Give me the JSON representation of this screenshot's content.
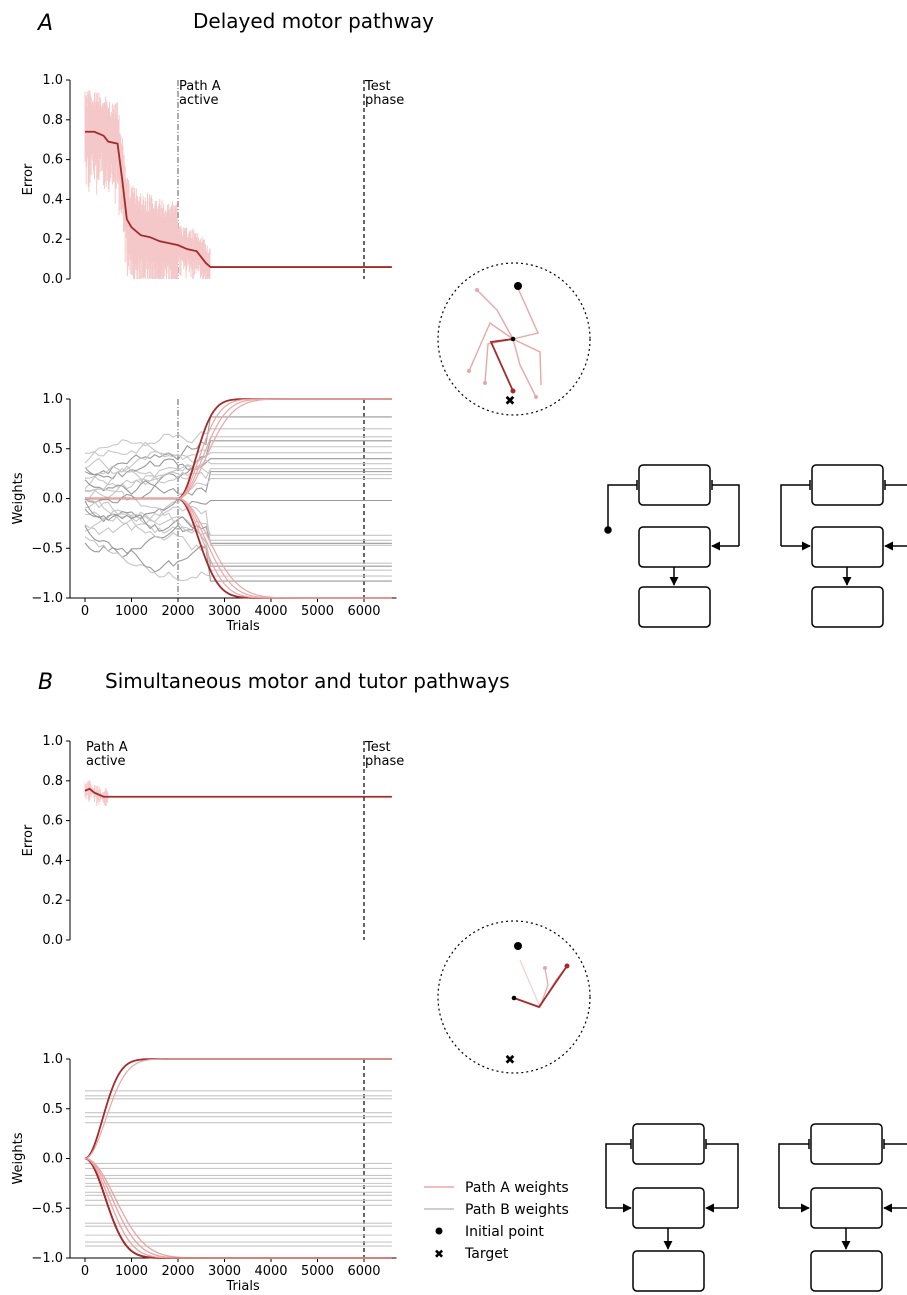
{
  "figure": {
    "panelA": {
      "letter": "A",
      "title": "Delayed motor pathway"
    },
    "panelB": {
      "letter": "B",
      "title": "Simultaneous motor and tutor pathways"
    }
  },
  "colors": {
    "path_a": "#a52a2a",
    "path_a_light": "#e8a7a7",
    "path_b": "#999999",
    "noise": "#f4c8c8"
  },
  "legend": {
    "items": [
      {
        "label": "Path A weights",
        "marker": "line",
        "color": "#e8a7a7"
      },
      {
        "label": "Path B weights",
        "marker": "line",
        "color": "#bdbdbd"
      },
      {
        "label": "Initial point",
        "marker": "circle",
        "color": "#000000"
      },
      {
        "label": "Target",
        "marker": "x",
        "color": "#000000"
      }
    ]
  },
  "chart_data": [
    {
      "id": "A-error",
      "type": "line",
      "ylabel": "Error",
      "xlabel": "",
      "ylim": [
        0,
        1.0
      ],
      "xlim": [
        -250,
        6700
      ],
      "yticks": [
        0.0,
        0.2,
        0.4,
        0.6,
        0.8,
        1.0
      ],
      "ytick_labels": [
        "0.0",
        "0.2",
        "0.4",
        "0.6",
        "0.8",
        "1.0"
      ],
      "annotations": [
        {
          "x": 2000,
          "text": [
            "Path A",
            "active"
          ],
          "style": "dashdot"
        },
        {
          "x": 6000,
          "text": [
            "Test",
            "phase"
          ],
          "style": "dashed"
        }
      ],
      "series": [
        {
          "x": [
            0,
            200,
            400,
            500,
            700,
            800,
            900,
            1000,
            1200,
            1400,
            1600,
            1800,
            2000,
            2200,
            2400,
            2600,
            2700,
            6600
          ],
          "values": [
            0.74,
            0.74,
            0.72,
            0.69,
            0.68,
            0.5,
            0.3,
            0.26,
            0.22,
            0.21,
            0.19,
            0.18,
            0.17,
            0.15,
            0.14,
            0.08,
            0.06,
            0.06
          ]
        }
      ]
    },
    {
      "id": "A-weights",
      "type": "line",
      "ylabel": "Weights",
      "xlabel": "Trials",
      "ylim": [
        -1.0,
        1.0
      ],
      "xlim": [
        -250,
        6700
      ],
      "yticks": [
        -1.0,
        -0.5,
        0.0,
        0.5,
        1.0
      ],
      "ytick_labels": [
        "−1.0",
        "−0.5",
        "0.0",
        "0.5",
        "1.0"
      ],
      "xticks": [
        0,
        1000,
        2000,
        3000,
        4000,
        5000,
        6000
      ],
      "xtick_labels": [
        "0",
        "1000",
        "2000",
        "3000",
        "4000",
        "5000",
        "6000"
      ],
      "annotations": [
        {
          "x": 2000,
          "style": "dashdot"
        },
        {
          "x": 6000,
          "style": "dashed"
        }
      ],
      "path_a_final": [
        1.0,
        1.0,
        1.0,
        1.0,
        -1.0,
        -1.0,
        -1.0,
        -1.0
      ],
      "path_b_final": [
        0.82,
        0.7,
        0.62,
        0.58,
        0.52,
        0.46,
        0.4,
        0.35,
        0.3,
        0.27,
        0.24,
        0.2,
        -0.02,
        -0.37,
        -0.42,
        -0.45,
        -0.47,
        -0.65,
        -0.68,
        -0.72,
        -0.78,
        -0.83
      ]
    },
    {
      "id": "B-error",
      "type": "line",
      "ylabel": "Error",
      "xlabel": "",
      "ylim": [
        0,
        1.0
      ],
      "xlim": [
        -250,
        6700
      ],
      "yticks": [
        0.0,
        0.2,
        0.4,
        0.6,
        0.8,
        1.0
      ],
      "ytick_labels": [
        "0.0",
        "0.2",
        "0.4",
        "0.6",
        "0.8",
        "1.0"
      ],
      "annotations": [
        {
          "x": 0,
          "text": [
            "Path A",
            "active"
          ],
          "style": "none"
        },
        {
          "x": 6000,
          "text": [
            "Test",
            "phase"
          ],
          "style": "dashed"
        }
      ],
      "series": [
        {
          "x": [
            0,
            100,
            200,
            300,
            400,
            500,
            6600
          ],
          "values": [
            0.75,
            0.76,
            0.74,
            0.73,
            0.72,
            0.72,
            0.72
          ]
        }
      ]
    },
    {
      "id": "B-weights",
      "type": "line",
      "ylabel": "Weights",
      "xlabel": "Trials",
      "ylim": [
        -1.0,
        1.0
      ],
      "xlim": [
        -250,
        6700
      ],
      "yticks": [
        -1.0,
        -0.5,
        0.0,
        0.5,
        1.0
      ],
      "ytick_labels": [
        "−1.0",
        "−0.5",
        "0.0",
        "0.5",
        "1.0"
      ],
      "xticks": [
        0,
        1000,
        2000,
        3000,
        4000,
        5000,
        6000
      ],
      "xtick_labels": [
        "0",
        "1000",
        "2000",
        "3000",
        "4000",
        "5000",
        "6000"
      ],
      "annotations": [
        {
          "x": 6000,
          "style": "dashed"
        }
      ],
      "path_a_final": [
        1.0,
        1.0,
        -1.0,
        -1.0,
        -1.0,
        -1.0,
        -1.0,
        -1.0,
        -1.0,
        -1.0
      ],
      "path_b_final": [
        0.68,
        0.63,
        0.6,
        0.46,
        0.42,
        0.36,
        -0.05,
        -0.1,
        -0.17,
        -0.2,
        -0.25,
        -0.28,
        -0.34,
        -0.37,
        -0.42,
        -0.47,
        -0.65,
        -0.68,
        -0.77,
        -0.84,
        -0.88
      ]
    }
  ]
}
